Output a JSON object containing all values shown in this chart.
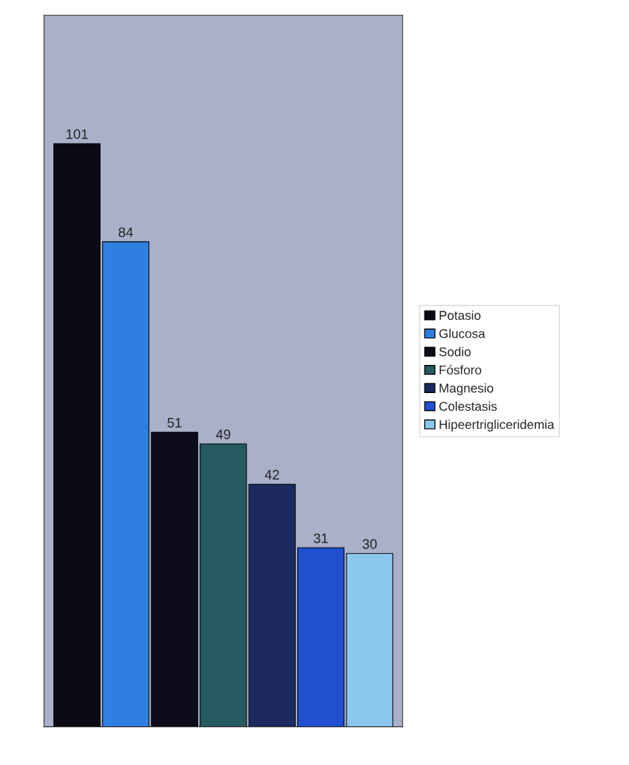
{
  "chart_data": {
    "type": "bar",
    "categories": [
      null
    ],
    "series": [
      {
        "name": "Potasio",
        "color": "#0a0a14",
        "values": [
          101
        ]
      },
      {
        "name": "Glucosa",
        "color": "#2f7fe0",
        "values": [
          84
        ]
      },
      {
        "name": "Sodio",
        "color": "#0c0c1c",
        "values": [
          51
        ]
      },
      {
        "name": "Fósforo",
        "color": "#245a60",
        "values": [
          49
        ]
      },
      {
        "name": "Magnesio",
        "color": "#1c2a60",
        "values": [
          42
        ]
      },
      {
        "name": "Colestasis",
        "color": "#2050d0",
        "values": [
          31
        ]
      },
      {
        "name": "Hipeertrigliceridemia",
        "color": "#8ac8f0",
        "values": [
          30
        ]
      }
    ],
    "data_labels": true,
    "legend": "right",
    "grid": false
  }
}
